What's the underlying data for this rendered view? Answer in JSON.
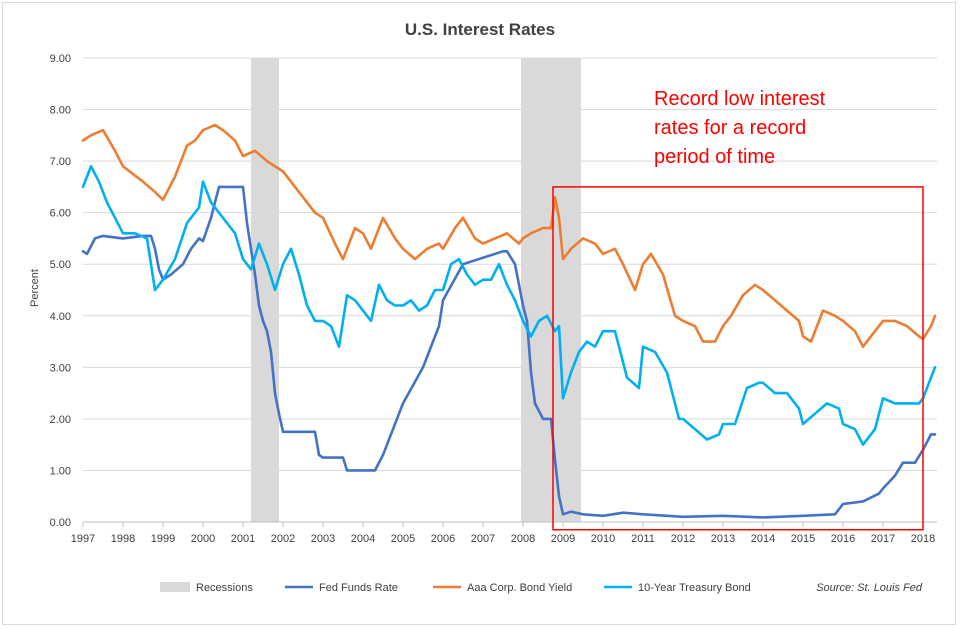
{
  "chart_data": {
    "type": "line",
    "title": "U.S. Interest Rates",
    "ylabel": "Percent",
    "xlabel": "",
    "xlim": [
      1997.0,
      2018.35
    ],
    "ylim": [
      0,
      9
    ],
    "yticks": [
      "0.00",
      "1.00",
      "2.00",
      "3.00",
      "4.00",
      "5.00",
      "6.00",
      "7.00",
      "8.00",
      "9.00"
    ],
    "xticks": [
      "1997",
      "1998",
      "1999",
      "2000",
      "2001",
      "2002",
      "2003",
      "2004",
      "2005",
      "2006",
      "2007",
      "2008",
      "2009",
      "2010",
      "2011",
      "2012",
      "2013",
      "2014",
      "2015",
      "2016",
      "2017",
      "2018"
    ],
    "grid": "horizontal",
    "legend_position": "bottom",
    "recessions": [
      {
        "start": 2001.2,
        "end": 2001.9
      },
      {
        "start": 2007.95,
        "end": 2009.45
      }
    ],
    "series": [
      {
        "name": "Fed Funds Rate",
        "color": "#4472c4",
        "x": [
          1997.0,
          1997.1,
          1997.3,
          1997.5,
          1998.0,
          1998.5,
          1998.7,
          1998.8,
          1998.9,
          1999.0,
          1999.2,
          1999.5,
          1999.7,
          1999.9,
          2000.0,
          2000.2,
          2000.4,
          2000.6,
          2001.0,
          2001.1,
          2001.2,
          2001.3,
          2001.4,
          2001.5,
          2001.6,
          2001.7,
          2001.8,
          2001.9,
          2002.0,
          2002.8,
          2002.9,
          2003.0,
          2003.5,
          2003.6,
          2003.9,
          2004.0,
          2004.3,
          2004.5,
          2004.9,
          2005.0,
          2005.5,
          2005.9,
          2006.0,
          2006.5,
          2007.5,
          2007.6,
          2007.8,
          2007.9,
          2008.0,
          2008.1,
          2008.2,
          2008.3,
          2008.5,
          2008.7,
          2008.8,
          2008.9,
          2009.0,
          2009.2,
          2009.5,
          2010.0,
          2010.5,
          2011.0,
          2012.0,
          2013.0,
          2014.0,
          2015.0,
          2015.8,
          2016.0,
          2016.5,
          2016.9,
          2017.0,
          2017.3,
          2017.5,
          2017.8,
          2018.0,
          2018.2,
          2018.3
        ],
        "values": [
          5.25,
          5.2,
          5.5,
          5.55,
          5.5,
          5.55,
          5.55,
          5.3,
          4.9,
          4.7,
          4.8,
          5.0,
          5.3,
          5.5,
          5.45,
          5.9,
          6.5,
          6.5,
          6.5,
          5.8,
          5.3,
          4.8,
          4.2,
          3.9,
          3.7,
          3.3,
          2.5,
          2.1,
          1.75,
          1.75,
          1.3,
          1.25,
          1.25,
          1.0,
          1.0,
          1.0,
          1.0,
          1.3,
          2.1,
          2.3,
          3.0,
          3.8,
          4.3,
          5.0,
          5.25,
          5.25,
          5.0,
          4.6,
          4.2,
          3.9,
          2.9,
          2.3,
          2.0,
          2.0,
          1.2,
          0.5,
          0.15,
          0.2,
          0.15,
          0.12,
          0.18,
          0.15,
          0.1,
          0.12,
          0.09,
          0.12,
          0.15,
          0.35,
          0.4,
          0.55,
          0.65,
          0.9,
          1.15,
          1.15,
          1.4,
          1.7,
          1.7
        ]
      },
      {
        "name": "Aaa Corp. Bond Yield",
        "color": "#ed7d31",
        "x": [
          1997.0,
          1997.2,
          1997.5,
          1997.8,
          1998.0,
          1998.5,
          1998.8,
          1999.0,
          1999.3,
          1999.6,
          1999.8,
          2000.0,
          2000.3,
          2000.5,
          2000.8,
          2001.0,
          2001.3,
          2001.6,
          2001.8,
          2002.0,
          2002.2,
          2002.5,
          2002.8,
          2003.0,
          2003.3,
          2003.5,
          2003.8,
          2004.0,
          2004.2,
          2004.5,
          2004.8,
          2005.0,
          2005.3,
          2005.6,
          2005.9,
          2006.0,
          2006.3,
          2006.5,
          2006.8,
          2007.0,
          2007.3,
          2007.6,
          2007.9,
          2008.0,
          2008.2,
          2008.5,
          2008.7,
          2008.8,
          2008.9,
          2009.0,
          2009.2,
          2009.5,
          2009.8,
          2010.0,
          2010.3,
          2010.5,
          2010.8,
          2011.0,
          2011.2,
          2011.5,
          2011.8,
          2012.0,
          2012.3,
          2012.5,
          2012.8,
          2013.0,
          2013.2,
          2013.5,
          2013.8,
          2014.0,
          2014.3,
          2014.6,
          2014.9,
          2015.0,
          2015.2,
          2015.5,
          2015.8,
          2016.0,
          2016.3,
          2016.5,
          2016.8,
          2017.0,
          2017.3,
          2017.6,
          2017.9,
          2018.0,
          2018.2,
          2018.3
        ],
        "values": [
          7.4,
          7.5,
          7.6,
          7.2,
          6.9,
          6.6,
          6.4,
          6.25,
          6.7,
          7.3,
          7.4,
          7.6,
          7.7,
          7.6,
          7.4,
          7.1,
          7.2,
          7.0,
          6.9,
          6.8,
          6.6,
          6.3,
          6.0,
          5.9,
          5.4,
          5.1,
          5.7,
          5.6,
          5.3,
          5.9,
          5.5,
          5.3,
          5.1,
          5.3,
          5.4,
          5.3,
          5.7,
          5.9,
          5.5,
          5.4,
          5.5,
          5.6,
          5.4,
          5.5,
          5.6,
          5.7,
          5.7,
          6.3,
          5.9,
          5.1,
          5.3,
          5.5,
          5.4,
          5.2,
          5.3,
          5.0,
          4.5,
          5.0,
          5.2,
          4.8,
          4.0,
          3.9,
          3.8,
          3.5,
          3.5,
          3.8,
          4.0,
          4.4,
          4.6,
          4.5,
          4.3,
          4.1,
          3.9,
          3.6,
          3.5,
          4.1,
          4.0,
          3.9,
          3.7,
          3.4,
          3.7,
          3.9,
          3.9,
          3.8,
          3.6,
          3.55,
          3.8,
          4.0
        ]
      },
      {
        "name": "10-Year Treasury Bond",
        "color": "#00b0f0",
        "x": [
          1997.0,
          1997.2,
          1997.4,
          1997.6,
          1997.8,
          1998.0,
          1998.3,
          1998.6,
          1998.8,
          1999.0,
          1999.3,
          1999.6,
          1999.9,
          2000.0,
          2000.2,
          2000.4,
          2000.6,
          2000.8,
          2001.0,
          2001.2,
          2001.4,
          2001.6,
          2001.8,
          2002.0,
          2002.2,
          2002.4,
          2002.6,
          2002.8,
          2003.0,
          2003.2,
          2003.4,
          2003.6,
          2003.8,
          2004.0,
          2004.2,
          2004.4,
          2004.6,
          2004.8,
          2005.0,
          2005.2,
          2005.4,
          2005.6,
          2005.8,
          2006.0,
          2006.2,
          2006.4,
          2006.6,
          2006.8,
          2007.0,
          2007.2,
          2007.4,
          2007.6,
          2007.8,
          2008.0,
          2008.2,
          2008.4,
          2008.6,
          2008.8,
          2008.9,
          2009.0,
          2009.2,
          2009.4,
          2009.6,
          2009.8,
          2010.0,
          2010.3,
          2010.6,
          2010.9,
          2011.0,
          2011.3,
          2011.6,
          2011.9,
          2012.0,
          2012.3,
          2012.6,
          2012.9,
          2013.0,
          2013.3,
          2013.6,
          2013.9,
          2014.0,
          2014.3,
          2014.6,
          2014.9,
          2015.0,
          2015.3,
          2015.6,
          2015.9,
          2016.0,
          2016.3,
          2016.5,
          2016.8,
          2017.0,
          2017.3,
          2017.6,
          2017.9,
          2018.0,
          2018.2,
          2018.3
        ],
        "values": [
          6.5,
          6.9,
          6.6,
          6.2,
          5.9,
          5.6,
          5.6,
          5.5,
          4.5,
          4.7,
          5.1,
          5.8,
          6.1,
          6.6,
          6.2,
          6.0,
          5.8,
          5.6,
          5.1,
          4.9,
          5.4,
          5.0,
          4.5,
          5.0,
          5.3,
          4.8,
          4.2,
          3.9,
          3.9,
          3.8,
          3.4,
          4.4,
          4.3,
          4.1,
          3.9,
          4.6,
          4.3,
          4.2,
          4.2,
          4.3,
          4.1,
          4.2,
          4.5,
          4.5,
          5.0,
          5.1,
          4.8,
          4.6,
          4.7,
          4.7,
          5.0,
          4.6,
          4.3,
          3.9,
          3.6,
          3.9,
          4.0,
          3.7,
          3.8,
          2.4,
          2.9,
          3.3,
          3.5,
          3.4,
          3.7,
          3.7,
          2.8,
          2.6,
          3.4,
          3.3,
          2.9,
          2.0,
          2.0,
          1.8,
          1.6,
          1.7,
          1.9,
          1.9,
          2.6,
          2.7,
          2.7,
          2.5,
          2.5,
          2.2,
          1.9,
          2.1,
          2.3,
          2.2,
          1.9,
          1.8,
          1.5,
          1.8,
          2.4,
          2.3,
          2.3,
          2.3,
          2.4,
          2.8,
          3.0
        ]
      }
    ],
    "annotation": {
      "lines": [
        "Record low interest",
        "rates for a record",
        "period of time"
      ],
      "color": "#ff0000",
      "box_x_range": [
        2008.75,
        2018.0
      ],
      "box_y_range": [
        -0.15,
        6.5
      ]
    },
    "legend": {
      "recessions_label": "Recessions",
      "recessions_color": "#d9d9d9"
    },
    "source": "Source: St. Louis Fed"
  }
}
